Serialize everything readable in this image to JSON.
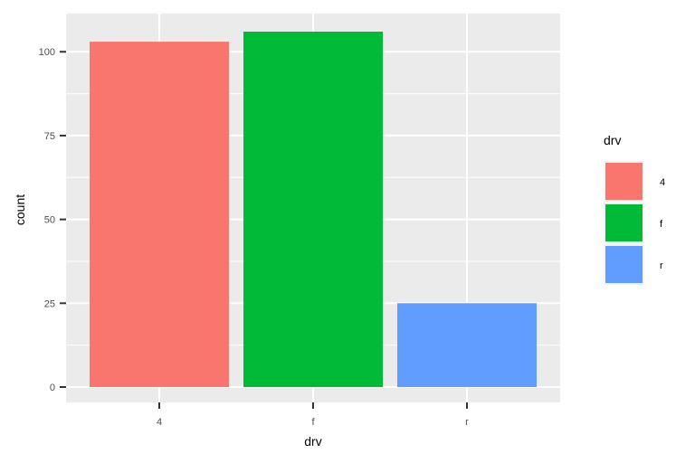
{
  "chart_data": {
    "type": "bar",
    "categories": [
      "4",
      "f",
      "r"
    ],
    "values": [
      103,
      106,
      25
    ],
    "colors": [
      "#F8766D",
      "#00BA38",
      "#619CFF"
    ],
    "xlabel": "drv",
    "ylabel": "count",
    "ylim": [
      0,
      106
    ],
    "y_ticks": [
      0,
      25,
      50,
      75,
      100
    ],
    "grid": true,
    "panel_background": "#EBEBEB",
    "legend": {
      "title": "drv",
      "position": "right",
      "entries": [
        "4",
        "f",
        "r"
      ]
    }
  }
}
